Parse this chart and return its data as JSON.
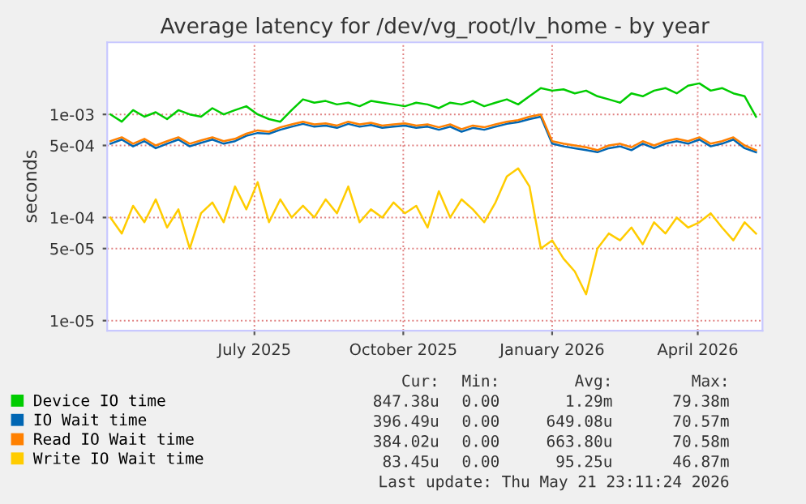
{
  "chart_data": {
    "type": "line",
    "title": "Average latency for /dev/vg_root/lv_home - by year",
    "ylabel": "seconds",
    "log": true,
    "grid": true,
    "legend": "bottom",
    "ylim": [
      8e-06,
      0.005
    ],
    "yticks": [
      {
        "value": 1e-05,
        "label": "1e-05"
      },
      {
        "value": 5e-05,
        "label": "5e-05"
      },
      {
        "value": 0.0001,
        "label": "1e-04"
      },
      {
        "value": 0.0005,
        "label": "5e-04"
      },
      {
        "value": 0.001,
        "label": "1e-03"
      }
    ],
    "xlim": [
      "2025-04-01",
      "2026-05-11"
    ],
    "xticks": [
      {
        "value": "2025-07-01",
        "label": "July 2025"
      },
      {
        "value": "2025-10-01",
        "label": "October 2025"
      },
      {
        "value": "2026-01-01",
        "label": "January 2026"
      },
      {
        "value": "2026-04-01",
        "label": "April 2026"
      }
    ],
    "x": [
      "2025-04-03",
      "2025-04-10",
      "2025-04-17",
      "2025-04-24",
      "2025-05-01",
      "2025-05-08",
      "2025-05-15",
      "2025-05-22",
      "2025-05-29",
      "2025-06-05",
      "2025-06-12",
      "2025-06-19",
      "2025-06-26",
      "2025-07-03",
      "2025-07-10",
      "2025-07-17",
      "2025-07-24",
      "2025-07-31",
      "2025-08-07",
      "2025-08-14",
      "2025-08-21",
      "2025-08-28",
      "2025-09-04",
      "2025-09-11",
      "2025-09-18",
      "2025-09-25",
      "2025-10-02",
      "2025-10-09",
      "2025-10-16",
      "2025-10-23",
      "2025-10-30",
      "2025-11-06",
      "2025-11-13",
      "2025-11-20",
      "2025-11-27",
      "2025-12-04",
      "2025-12-11",
      "2025-12-18",
      "2025-12-25",
      "2026-01-01",
      "2026-01-08",
      "2026-01-15",
      "2026-01-22",
      "2026-01-29",
      "2026-02-05",
      "2026-02-12",
      "2026-02-19",
      "2026-02-26",
      "2026-03-05",
      "2026-03-12",
      "2026-03-19",
      "2026-03-26",
      "2026-04-02",
      "2026-04-09",
      "2026-04-16",
      "2026-04-23",
      "2026-04-30",
      "2026-05-07"
    ],
    "series": [
      {
        "name": "Device IO time",
        "color": "#00cc00",
        "values": [
          0.001,
          0.00085,
          0.0011,
          0.00095,
          0.00105,
          0.0009,
          0.0011,
          0.001,
          0.00095,
          0.00115,
          0.001,
          0.0011,
          0.0012,
          0.001,
          0.0009,
          0.00085,
          0.0011,
          0.0014,
          0.0013,
          0.00135,
          0.00125,
          0.0013,
          0.0012,
          0.00135,
          0.0013,
          0.00125,
          0.0012,
          0.0013,
          0.00125,
          0.00115,
          0.0013,
          0.00125,
          0.00135,
          0.0012,
          0.0013,
          0.0014,
          0.00125,
          0.0015,
          0.0018,
          0.0017,
          0.00175,
          0.0016,
          0.0017,
          0.0015,
          0.0014,
          0.0013,
          0.0016,
          0.0015,
          0.0017,
          0.0018,
          0.0016,
          0.0019,
          0.002,
          0.0017,
          0.0018,
          0.0016,
          0.0015,
          0.00095
        ]
      },
      {
        "name": "IO Wait time",
        "color": "#0066b3",
        "values": [
          0.00052,
          0.00057,
          0.00049,
          0.00055,
          0.00047,
          0.00052,
          0.00057,
          0.00049,
          0.00053,
          0.00057,
          0.00052,
          0.00055,
          0.00062,
          0.00066,
          0.00065,
          0.00071,
          0.00076,
          0.00081,
          0.00076,
          0.00078,
          0.00074,
          0.00081,
          0.00076,
          0.00079,
          0.00074,
          0.00076,
          0.00078,
          0.00074,
          0.00076,
          0.00071,
          0.00076,
          0.00068,
          0.00074,
          0.00071,
          0.00076,
          0.00081,
          0.00084,
          0.0009,
          0.00095,
          0.00052,
          0.00049,
          0.00047,
          0.00045,
          0.00043,
          0.00047,
          0.00049,
          0.00045,
          0.00052,
          0.00047,
          0.00052,
          0.00055,
          0.00052,
          0.00057,
          0.00049,
          0.00052,
          0.00057,
          0.00047,
          0.00043
        ]
      },
      {
        "name": "Read IO Wait time",
        "color": "#ff8000",
        "values": [
          0.00055,
          0.0006,
          0.00052,
          0.00058,
          0.0005,
          0.00055,
          0.0006,
          0.00052,
          0.00056,
          0.0006,
          0.00055,
          0.00058,
          0.00065,
          0.0007,
          0.00068,
          0.00075,
          0.0008,
          0.00085,
          0.0008,
          0.00082,
          0.00078,
          0.00085,
          0.0008,
          0.00083,
          0.00078,
          0.0008,
          0.00082,
          0.00078,
          0.0008,
          0.00075,
          0.0008,
          0.00072,
          0.00078,
          0.00075,
          0.0008,
          0.00085,
          0.00088,
          0.00095,
          0.001,
          0.00055,
          0.00052,
          0.0005,
          0.00048,
          0.00045,
          0.0005,
          0.00052,
          0.00048,
          0.00055,
          0.0005,
          0.00055,
          0.00058,
          0.00055,
          0.0006,
          0.00052,
          0.00055,
          0.0006,
          0.0005,
          0.00045
        ]
      },
      {
        "name": "Write IO Wait time",
        "color": "#ffcc00",
        "values": [
          0.0001,
          7e-05,
          0.00013,
          9e-05,
          0.00015,
          8e-05,
          0.00012,
          5e-05,
          0.00011,
          0.00014,
          9e-05,
          0.0002,
          0.00012,
          0.00022,
          9e-05,
          0.00015,
          0.0001,
          0.00013,
          0.0001,
          0.00015,
          0.00011,
          0.0002,
          9e-05,
          0.00012,
          0.0001,
          0.00014,
          0.00011,
          0.00013,
          8e-05,
          0.00018,
          0.0001,
          0.00015,
          0.00012,
          9e-05,
          0.00014,
          0.00025,
          0.0003,
          0.0002,
          5e-05,
          6e-05,
          4e-05,
          3e-05,
          1.8e-05,
          5e-05,
          7e-05,
          6e-05,
          8e-05,
          5.5e-05,
          9e-05,
          7e-05,
          0.0001,
          8e-05,
          9e-05,
          0.00011,
          8e-05,
          6e-05,
          9e-05,
          7e-05
        ]
      }
    ],
    "annotations": [
      "Cur:",
      "Min:",
      "Avg:",
      "Max:",
      "847.38u",
      "0.00",
      "1.29m",
      "79.38m",
      "396.49u",
      "0.00",
      "649.08u",
      "70.57m",
      "384.02u",
      "0.00",
      "663.80u",
      "70.58m",
      "83.45u",
      "0.00",
      "95.25u",
      "46.87m",
      "Last update: Thu May 21 23:11:24 2026"
    ]
  }
}
